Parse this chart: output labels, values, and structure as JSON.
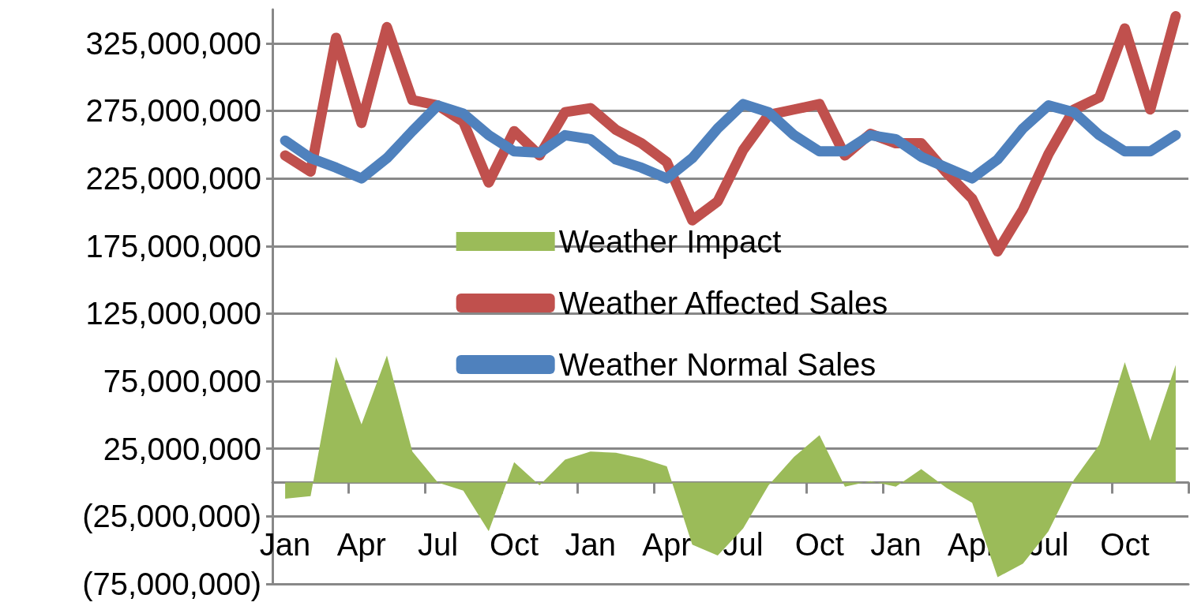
{
  "chart_data": {
    "type": "line",
    "categories": [
      "Jan",
      null,
      null,
      "Apr",
      null,
      null,
      "Jul",
      null,
      null,
      "Oct",
      null,
      null,
      "Jan",
      null,
      null,
      "Apr",
      null,
      null,
      "Jul",
      null,
      null,
      "Oct",
      null,
      null,
      "Jan",
      null,
      null,
      "Apr",
      null,
      null,
      "Jul",
      null,
      null,
      "Oct",
      null,
      null
    ],
    "series": [
      {
        "name": "Weather Impact",
        "type": "area",
        "color": "#9bbb59",
        "values": [
          -12000000,
          -10000000,
          93000000,
          43000000,
          94000000,
          23000000,
          0,
          -6000000,
          -36000000,
          15000000,
          -2000000,
          17000000,
          23000000,
          22000000,
          18000000,
          12000000,
          -46000000,
          -54000000,
          -34000000,
          -2000000,
          19000000,
          35000000,
          -3000000,
          1000000,
          -3000000,
          10000000,
          -4000000,
          -15000000,
          -70000000,
          -60000000,
          -36000000,
          2000000,
          28000000,
          89000000,
          31000000,
          87000000
        ]
      },
      {
        "name": "Weather Affected Sales",
        "type": "line",
        "color": "#c0504d",
        "values": [
          242000000,
          230000000,
          329000000,
          266000000,
          337000000,
          283000000,
          279000000,
          267000000,
          222000000,
          260000000,
          242000000,
          274000000,
          277000000,
          261000000,
          251000000,
          237000000,
          194000000,
          208000000,
          246000000,
          272000000,
          276000000,
          280000000,
          242000000,
          258000000,
          251000000,
          251000000,
          229000000,
          210000000,
          171000000,
          202000000,
          243000000,
          276000000,
          285000000,
          336000000,
          276000000,
          345000000
        ]
      },
      {
        "name": "Weather Normal Sales",
        "type": "line",
        "color": "#4f81bd",
        "values": [
          253000000,
          240000000,
          233000000,
          225000000,
          240000000,
          260000000,
          279000000,
          273000000,
          257000000,
          245000000,
          244000000,
          257000000,
          254000000,
          239000000,
          233000000,
          225000000,
          240000000,
          262000000,
          280000000,
          274000000,
          257000000,
          245000000,
          245000000,
          257000000,
          254000000,
          241000000,
          233000000,
          225000000,
          239000000,
          262000000,
          279000000,
          274000000,
          257000000,
          245000000,
          245000000,
          257000000
        ]
      }
    ],
    "ylim": [
      -75000000,
      350000000
    ],
    "yticks": [
      {
        "value": -75000000,
        "label": "(75,000,000)"
      },
      {
        "value": -25000000,
        "label": "(25,000,000)"
      },
      {
        "value": 25000000,
        "label": "25,000,000"
      },
      {
        "value": 75000000,
        "label": "75,000,000"
      },
      {
        "value": 125000000,
        "label": "125,000,000"
      },
      {
        "value": 175000000,
        "label": "175,000,000"
      },
      {
        "value": 225000000,
        "label": "225,000,000"
      },
      {
        "value": 275000000,
        "label": "275,000,000"
      },
      {
        "value": 325000000,
        "label": "325,000,000"
      }
    ],
    "grid": "y",
    "legend": "center",
    "marker": "none",
    "line_style": "solid"
  }
}
